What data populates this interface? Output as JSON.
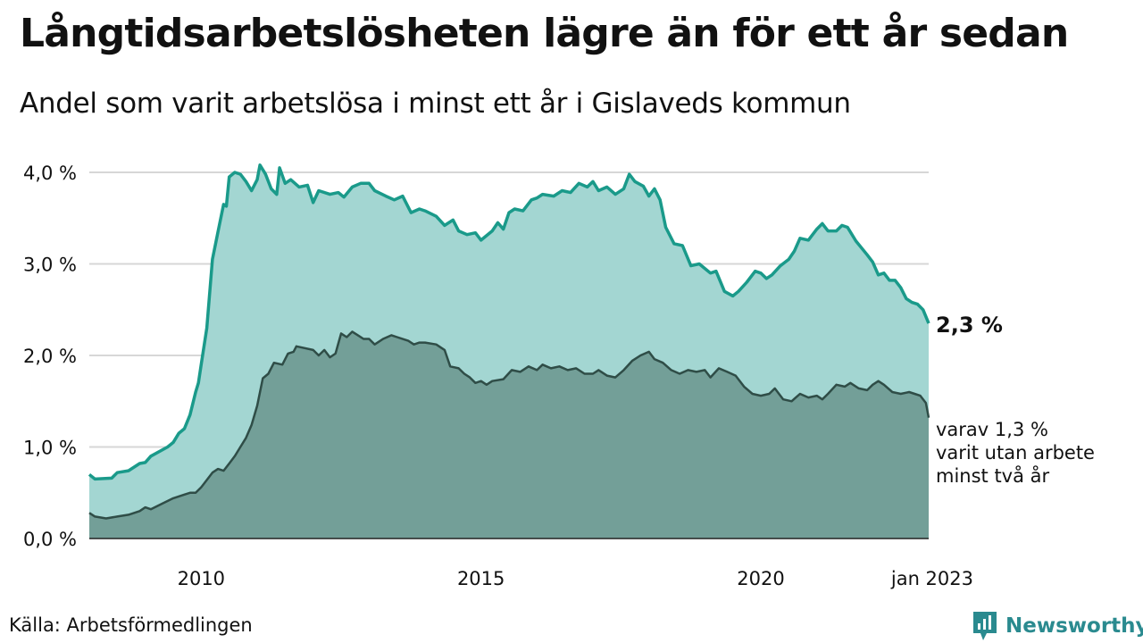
{
  "title": "Långtidsarbetslösheten lägre än för ett år sedan",
  "subtitle": "Andel som varit arbetslösa i minst ett år i Gislaveds kommun",
  "source": "Källa: Arbetsförmedlingen",
  "brand": {
    "name": "Newsworthy",
    "icon": "bar-chart-logo-icon"
  },
  "colors": {
    "upper_fill": "#a3d6d2",
    "upper_line": "#1a9a8a",
    "lower_fill": "#739f98",
    "lower_line": "#2f4d47",
    "grid": "#d7d7d7",
    "brand": "#2a8a8f"
  },
  "chart_data": {
    "type": "area",
    "x_unit": "decimal year",
    "y_unit": "percent",
    "xlim": [
      2008.0,
      2023.0
    ],
    "ylim": [
      0,
      4.0
    ],
    "y_ticks": [
      {
        "value": 0,
        "label": "0,0 %"
      },
      {
        "value": 1,
        "label": "1,0 %"
      },
      {
        "value": 2,
        "label": "2,0 %"
      },
      {
        "value": 3,
        "label": "3,0 %"
      },
      {
        "value": 4,
        "label": "4,0 %"
      }
    ],
    "x_ticks": [
      {
        "value": 2010,
        "label": "2010"
      },
      {
        "value": 2015,
        "label": "2015"
      },
      {
        "value": 2020,
        "label": "2020"
      },
      {
        "value": 2023,
        "label": "jan 2023"
      }
    ],
    "grid": true,
    "series": [
      {
        "key": "upper",
        "end_label": "2,3 %",
        "points": [
          [
            2008.0,
            0.7
          ],
          [
            2008.1,
            0.65
          ],
          [
            2008.4,
            0.66
          ],
          [
            2008.5,
            0.72
          ],
          [
            2008.7,
            0.74
          ],
          [
            2008.9,
            0.82
          ],
          [
            2009.0,
            0.83
          ],
          [
            2009.1,
            0.9
          ],
          [
            2009.4,
            1.0
          ],
          [
            2009.5,
            1.05
          ],
          [
            2009.6,
            1.15
          ],
          [
            2009.7,
            1.2
          ],
          [
            2009.8,
            1.35
          ],
          [
            2009.9,
            1.6
          ],
          [
            2009.95,
            1.7
          ],
          [
            2010.0,
            1.9
          ],
          [
            2010.1,
            2.3
          ],
          [
            2010.2,
            3.05
          ],
          [
            2010.3,
            3.35
          ],
          [
            2010.4,
            3.65
          ],
          [
            2010.45,
            3.63
          ],
          [
            2010.5,
            3.95
          ],
          [
            2010.6,
            4.0
          ],
          [
            2010.7,
            3.98
          ],
          [
            2010.8,
            3.9
          ],
          [
            2010.9,
            3.8
          ],
          [
            2011.0,
            3.92
          ],
          [
            2011.05,
            4.08
          ],
          [
            2011.15,
            3.98
          ],
          [
            2011.25,
            3.82
          ],
          [
            2011.35,
            3.76
          ],
          [
            2011.4,
            4.05
          ],
          [
            2011.5,
            3.88
          ],
          [
            2011.6,
            3.92
          ],
          [
            2011.75,
            3.84
          ],
          [
            2011.9,
            3.86
          ],
          [
            2012.0,
            3.67
          ],
          [
            2012.1,
            3.8
          ],
          [
            2012.3,
            3.76
          ],
          [
            2012.45,
            3.78
          ],
          [
            2012.55,
            3.73
          ],
          [
            2012.7,
            3.84
          ],
          [
            2012.85,
            3.88
          ],
          [
            2013.0,
            3.88
          ],
          [
            2013.1,
            3.8
          ],
          [
            2013.3,
            3.74
          ],
          [
            2013.45,
            3.7
          ],
          [
            2013.6,
            3.74
          ],
          [
            2013.75,
            3.56
          ],
          [
            2013.9,
            3.6
          ],
          [
            2014.0,
            3.58
          ],
          [
            2014.2,
            3.52
          ],
          [
            2014.35,
            3.42
          ],
          [
            2014.5,
            3.48
          ],
          [
            2014.6,
            3.36
          ],
          [
            2014.75,
            3.32
          ],
          [
            2014.9,
            3.34
          ],
          [
            2015.0,
            3.26
          ],
          [
            2015.2,
            3.36
          ],
          [
            2015.3,
            3.45
          ],
          [
            2015.4,
            3.38
          ],
          [
            2015.5,
            3.56
          ],
          [
            2015.6,
            3.6
          ],
          [
            2015.75,
            3.58
          ],
          [
            2015.9,
            3.7
          ],
          [
            2016.0,
            3.72
          ],
          [
            2016.1,
            3.76
          ],
          [
            2016.3,
            3.74
          ],
          [
            2016.45,
            3.8
          ],
          [
            2016.6,
            3.78
          ],
          [
            2016.75,
            3.88
          ],
          [
            2016.9,
            3.84
          ],
          [
            2017.0,
            3.9
          ],
          [
            2017.1,
            3.8
          ],
          [
            2017.25,
            3.84
          ],
          [
            2017.4,
            3.76
          ],
          [
            2017.55,
            3.82
          ],
          [
            2017.65,
            3.98
          ],
          [
            2017.75,
            3.9
          ],
          [
            2017.9,
            3.85
          ],
          [
            2018.0,
            3.74
          ],
          [
            2018.1,
            3.82
          ],
          [
            2018.2,
            3.7
          ],
          [
            2018.3,
            3.4
          ],
          [
            2018.45,
            3.22
          ],
          [
            2018.6,
            3.2
          ],
          [
            2018.75,
            2.98
          ],
          [
            2018.9,
            3.0
          ],
          [
            2019.0,
            2.95
          ],
          [
            2019.1,
            2.9
          ],
          [
            2019.2,
            2.92
          ],
          [
            2019.35,
            2.7
          ],
          [
            2019.5,
            2.65
          ],
          [
            2019.6,
            2.7
          ],
          [
            2019.75,
            2.8
          ],
          [
            2019.9,
            2.92
          ],
          [
            2020.0,
            2.9
          ],
          [
            2020.1,
            2.84
          ],
          [
            2020.2,
            2.88
          ],
          [
            2020.35,
            2.98
          ],
          [
            2020.5,
            3.05
          ],
          [
            2020.6,
            3.14
          ],
          [
            2020.7,
            3.28
          ],
          [
            2020.85,
            3.26
          ],
          [
            2020.9,
            3.3
          ],
          [
            2021.0,
            3.38
          ],
          [
            2021.1,
            3.44
          ],
          [
            2021.2,
            3.36
          ],
          [
            2021.35,
            3.36
          ],
          [
            2021.45,
            3.42
          ],
          [
            2021.55,
            3.4
          ],
          [
            2021.7,
            3.25
          ],
          [
            2021.9,
            3.1
          ],
          [
            2022.0,
            3.02
          ],
          [
            2022.1,
            2.88
          ],
          [
            2022.2,
            2.9
          ],
          [
            2022.3,
            2.82
          ],
          [
            2022.4,
            2.82
          ],
          [
            2022.5,
            2.74
          ],
          [
            2022.6,
            2.62
          ],
          [
            2022.7,
            2.58
          ],
          [
            2022.8,
            2.56
          ],
          [
            2022.9,
            2.5
          ],
          [
            2023.0,
            2.35
          ]
        ]
      },
      {
        "key": "lower",
        "end_label": "varav 1,3 %\nvarit utan arbete\nminst två år",
        "points": [
          [
            2008.0,
            0.28
          ],
          [
            2008.1,
            0.24
          ],
          [
            2008.3,
            0.22
          ],
          [
            2008.5,
            0.24
          ],
          [
            2008.7,
            0.26
          ],
          [
            2008.9,
            0.3
          ],
          [
            2009.0,
            0.34
          ],
          [
            2009.1,
            0.32
          ],
          [
            2009.3,
            0.38
          ],
          [
            2009.5,
            0.44
          ],
          [
            2009.7,
            0.48
          ],
          [
            2009.8,
            0.5
          ],
          [
            2009.9,
            0.5
          ],
          [
            2010.0,
            0.56
          ],
          [
            2010.05,
            0.6
          ],
          [
            2010.2,
            0.72
          ],
          [
            2010.3,
            0.76
          ],
          [
            2010.4,
            0.74
          ],
          [
            2010.5,
            0.82
          ],
          [
            2010.6,
            0.9
          ],
          [
            2010.7,
            1.0
          ],
          [
            2010.8,
            1.1
          ],
          [
            2010.9,
            1.24
          ],
          [
            2011.0,
            1.45
          ],
          [
            2011.1,
            1.75
          ],
          [
            2011.2,
            1.8
          ],
          [
            2011.3,
            1.92
          ],
          [
            2011.45,
            1.9
          ],
          [
            2011.55,
            2.02
          ],
          [
            2011.65,
            2.04
          ],
          [
            2011.7,
            2.1
          ],
          [
            2011.85,
            2.08
          ],
          [
            2012.0,
            2.06
          ],
          [
            2012.1,
            2.0
          ],
          [
            2012.2,
            2.06
          ],
          [
            2012.3,
            1.98
          ],
          [
            2012.4,
            2.02
          ],
          [
            2012.5,
            2.24
          ],
          [
            2012.6,
            2.2
          ],
          [
            2012.7,
            2.26
          ],
          [
            2012.8,
            2.22
          ],
          [
            2012.9,
            2.18
          ],
          [
            2013.0,
            2.18
          ],
          [
            2013.1,
            2.12
          ],
          [
            2013.25,
            2.18
          ],
          [
            2013.4,
            2.22
          ],
          [
            2013.5,
            2.2
          ],
          [
            2013.7,
            2.16
          ],
          [
            2013.8,
            2.12
          ],
          [
            2013.9,
            2.14
          ],
          [
            2014.0,
            2.14
          ],
          [
            2014.2,
            2.12
          ],
          [
            2014.35,
            2.06
          ],
          [
            2014.45,
            1.88
          ],
          [
            2014.6,
            1.86
          ],
          [
            2014.7,
            1.8
          ],
          [
            2014.8,
            1.76
          ],
          [
            2014.9,
            1.7
          ],
          [
            2015.0,
            1.72
          ],
          [
            2015.1,
            1.68
          ],
          [
            2015.2,
            1.72
          ],
          [
            2015.4,
            1.74
          ],
          [
            2015.55,
            1.84
          ],
          [
            2015.7,
            1.82
          ],
          [
            2015.85,
            1.88
          ],
          [
            2016.0,
            1.84
          ],
          [
            2016.1,
            1.9
          ],
          [
            2016.25,
            1.86
          ],
          [
            2016.4,
            1.88
          ],
          [
            2016.55,
            1.84
          ],
          [
            2016.7,
            1.86
          ],
          [
            2016.85,
            1.8
          ],
          [
            2017.0,
            1.8
          ],
          [
            2017.1,
            1.84
          ],
          [
            2017.25,
            1.78
          ],
          [
            2017.4,
            1.76
          ],
          [
            2017.55,
            1.84
          ],
          [
            2017.7,
            1.94
          ],
          [
            2017.85,
            2.0
          ],
          [
            2018.0,
            2.04
          ],
          [
            2018.1,
            1.96
          ],
          [
            2018.25,
            1.92
          ],
          [
            2018.4,
            1.84
          ],
          [
            2018.55,
            1.8
          ],
          [
            2018.7,
            1.84
          ],
          [
            2018.85,
            1.82
          ],
          [
            2019.0,
            1.84
          ],
          [
            2019.1,
            1.76
          ],
          [
            2019.25,
            1.86
          ],
          [
            2019.4,
            1.82
          ],
          [
            2019.55,
            1.78
          ],
          [
            2019.7,
            1.66
          ],
          [
            2019.85,
            1.58
          ],
          [
            2020.0,
            1.56
          ],
          [
            2020.15,
            1.58
          ],
          [
            2020.25,
            1.64
          ],
          [
            2020.4,
            1.52
          ],
          [
            2020.55,
            1.5
          ],
          [
            2020.7,
            1.58
          ],
          [
            2020.85,
            1.54
          ],
          [
            2021.0,
            1.56
          ],
          [
            2021.1,
            1.52
          ],
          [
            2021.2,
            1.58
          ],
          [
            2021.35,
            1.68
          ],
          [
            2021.5,
            1.66
          ],
          [
            2021.6,
            1.7
          ],
          [
            2021.75,
            1.64
          ],
          [
            2021.9,
            1.62
          ],
          [
            2022.0,
            1.68
          ],
          [
            2022.1,
            1.72
          ],
          [
            2022.2,
            1.68
          ],
          [
            2022.35,
            1.6
          ],
          [
            2022.5,
            1.58
          ],
          [
            2022.65,
            1.6
          ],
          [
            2022.75,
            1.58
          ],
          [
            2022.85,
            1.56
          ],
          [
            2022.95,
            1.48
          ],
          [
            2023.0,
            1.32
          ]
        ]
      }
    ]
  }
}
